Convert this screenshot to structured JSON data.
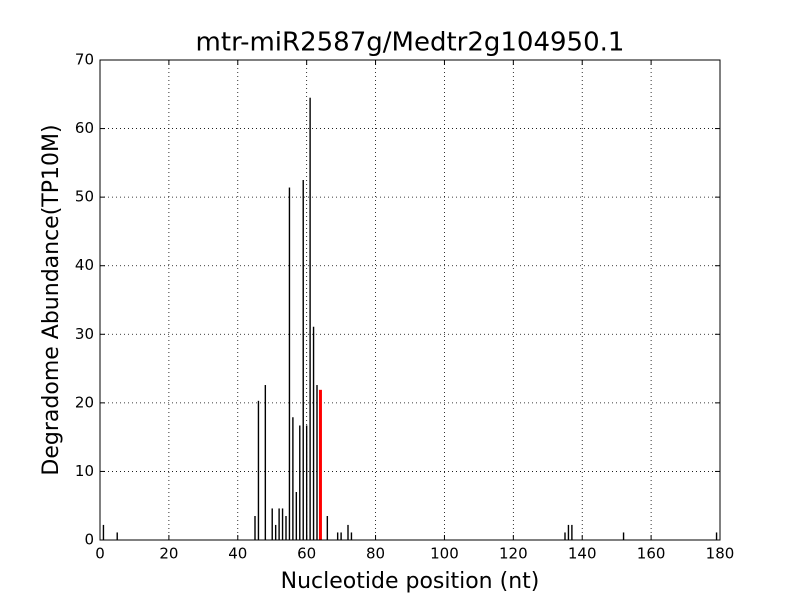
{
  "chart_data": {
    "type": "bar",
    "title": "mtr-miR2587g/Medtr2g104950.1",
    "x_label": "Nucleotide position (nt)",
    "y_label": "Degradome Abundance(TP10M)",
    "series": [
      {
        "color": "#000000",
        "x": [
          1,
          5,
          45,
          46,
          48,
          50,
          51,
          52,
          53,
          54,
          55,
          56,
          57,
          58,
          59,
          60,
          61,
          62,
          63,
          66,
          69,
          70,
          72,
          73,
          135,
          136,
          137,
          152,
          179
        ],
        "values": [
          2.2,
          1.1,
          3.5,
          20.3,
          22.6,
          4.6,
          2.2,
          4.6,
          4.6,
          3.5,
          51.4,
          17.9,
          7.0,
          16.7,
          52.5,
          16.7,
          64.5,
          31.1,
          22.6,
          3.5,
          1.1,
          1.1,
          2.2,
          1.1,
          1.1,
          2.2,
          2.2,
          1.1,
          1.1
        ]
      },
      {
        "color": "#ff0000",
        "x": [
          64
        ],
        "values": [
          21.9
        ]
      }
    ],
    "xlim": [
      0,
      180
    ],
    "xticks": [
      0,
      20,
      40,
      60,
      80,
      100,
      120,
      140,
      160,
      180
    ],
    "ylim": [
      0,
      70
    ],
    "yticks": [
      0,
      10,
      20,
      30,
      40,
      50,
      60,
      70
    ],
    "grid": true
  }
}
